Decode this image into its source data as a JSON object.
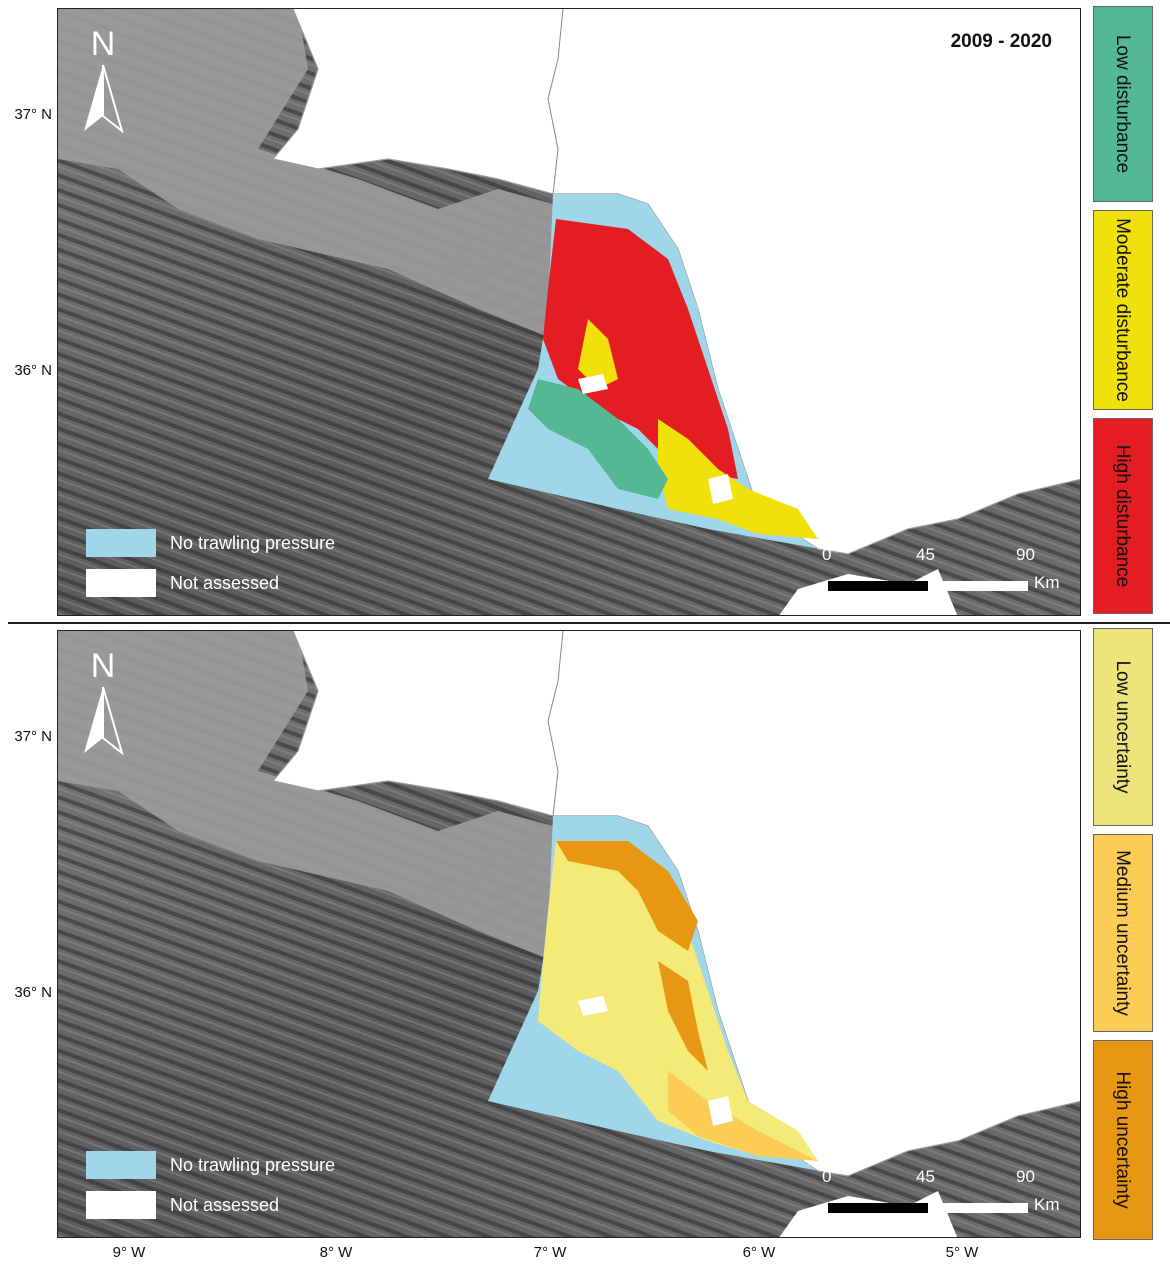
{
  "period_label": "2009 - 2020",
  "north_label": "N",
  "latitude_labels": [
    "37° N",
    "36° N",
    "37° N",
    "36° N"
  ],
  "longitude_labels": [
    "9° W",
    "8° W",
    "7° W",
    "6° W",
    "5° W"
  ],
  "legend": {
    "no_trawling": "No trawling pressure",
    "not_assessed": "Not assessed"
  },
  "scale": {
    "ticks": [
      "0",
      "45",
      "90"
    ],
    "unit": "Km"
  },
  "top_colorbar": [
    {
      "label": "Low disturbance",
      "color": "#55b894"
    },
    {
      "label": "Moderate disturbance",
      "color": "#f1e10b"
    },
    {
      "label": "High disturbance",
      "color": "#e41d23"
    }
  ],
  "bottom_colorbar": [
    {
      "label": "Low uncertainty",
      "color": "#ede57b"
    },
    {
      "label": "Medium uncertainty",
      "color": "#fdcc57"
    },
    {
      "label": "High uncertainty",
      "color": "#e89712"
    }
  ],
  "colors": {
    "no_trawling": "#a0d6ea",
    "not_assessed": "#ffffff",
    "sea_base": "#6b6b6b",
    "land": "#ffffff"
  }
}
